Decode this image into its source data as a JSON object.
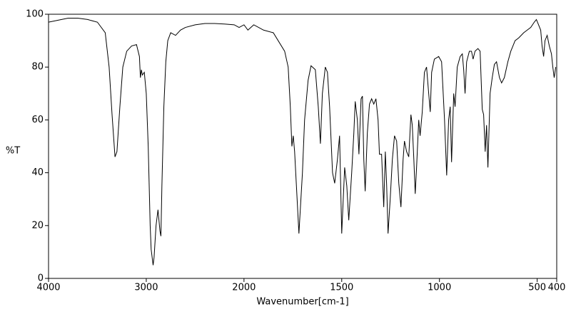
{
  "chart_data": {
    "type": "line",
    "x_label": "Wavenumber[cm-1]",
    "y_label": "%T",
    "xlim": [
      4000,
      400
    ],
    "xticks": [
      4000,
      3000,
      2000,
      1500,
      1000,
      500,
      400
    ],
    "x_scale_break": 2000,
    "ylim": [
      0,
      100
    ],
    "yticks": [
      0,
      20,
      40,
      60,
      80,
      100
    ],
    "color": "#000000",
    "x": [
      4000,
      3800,
      3700,
      3600,
      3500,
      3420,
      3380,
      3350,
      3320,
      3300,
      3270,
      3240,
      3200,
      3150,
      3100,
      3070,
      3060,
      3050,
      3040,
      3020,
      3000,
      2980,
      2960,
      2950,
      2930,
      2920,
      2900,
      2880,
      2860,
      2850,
      2840,
      2820,
      2800,
      2780,
      2750,
      2700,
      2650,
      2600,
      2500,
      2400,
      2300,
      2200,
      2100,
      2050,
      2000,
      1980,
      1950,
      1900,
      1850,
      1792,
      1774,
      1763,
      1755,
      1748,
      1741,
      1719,
      1701,
      1690,
      1672,
      1657,
      1635,
      1620,
      1609,
      1599,
      1584,
      1573,
      1562,
      1547,
      1536,
      1522,
      1511,
      1500,
      1485,
      1474,
      1464,
      1449,
      1438,
      1431,
      1420,
      1412,
      1401,
      1394,
      1387,
      1380,
      1369,
      1358,
      1347,
      1336,
      1325,
      1314,
      1307,
      1296,
      1285,
      1277,
      1270,
      1263,
      1252,
      1241,
      1230,
      1219,
      1208,
      1197,
      1186,
      1179,
      1168,
      1157,
      1146,
      1139,
      1131,
      1124,
      1117,
      1106,
      1099,
      1088,
      1077,
      1066,
      1055,
      1047,
      1040,
      1026,
      1004,
      989,
      974,
      963,
      953,
      945,
      938,
      927,
      920,
      909,
      894,
      883,
      876,
      869,
      861,
      847,
      836,
      828,
      818,
      803,
      792,
      781,
      774,
      766,
      759,
      752,
      741,
      730,
      719,
      708,
      693,
      682,
      668,
      650,
      635,
      624,
      613,
      595,
      569,
      551,
      533,
      515,
      504,
      493,
      482,
      475,
      467,
      460,
      449,
      438,
      427,
      420,
      413,
      405
    ],
    "values": [
      97,
      98.5,
      98.5,
      98,
      97,
      93,
      80,
      62,
      46,
      48,
      65,
      80,
      86,
      88,
      88.5,
      84,
      76,
      79,
      77,
      78,
      70,
      50,
      20,
      11,
      5,
      8,
      20,
      26,
      18,
      16,
      35,
      65,
      82,
      90,
      93,
      92,
      94,
      95,
      96,
      96.5,
      96.5,
      96.3,
      96,
      95,
      96,
      94,
      96,
      94,
      93,
      86,
      80,
      65,
      50,
      54,
      48,
      17,
      40,
      60,
      75,
      80.5,
      79,
      65,
      51,
      70,
      80,
      78,
      65,
      40,
      36,
      45,
      54,
      17,
      42,
      35,
      22,
      40,
      55,
      67,
      60,
      47,
      68,
      69,
      45,
      33,
      55,
      66,
      68,
      66,
      68,
      60,
      47,
      47,
      27,
      48,
      35,
      17,
      30,
      45,
      54,
      52,
      36,
      27,
      45,
      52,
      48,
      46,
      62,
      58,
      45,
      32,
      42,
      60,
      54,
      63,
      78,
      80,
      70,
      63,
      78,
      83,
      84,
      82,
      60,
      39,
      60,
      65,
      44,
      70,
      65,
      80,
      84,
      85,
      79,
      70,
      82,
      86,
      86,
      83,
      86,
      87,
      86,
      64,
      62,
      48,
      58,
      42,
      70,
      76,
      81,
      82,
      76,
      74,
      76,
      82,
      86,
      88,
      90,
      91,
      93,
      94,
      95,
      97,
      98,
      96,
      94,
      88,
      84,
      90,
      92,
      88,
      85,
      80,
      76,
      80
    ]
  }
}
